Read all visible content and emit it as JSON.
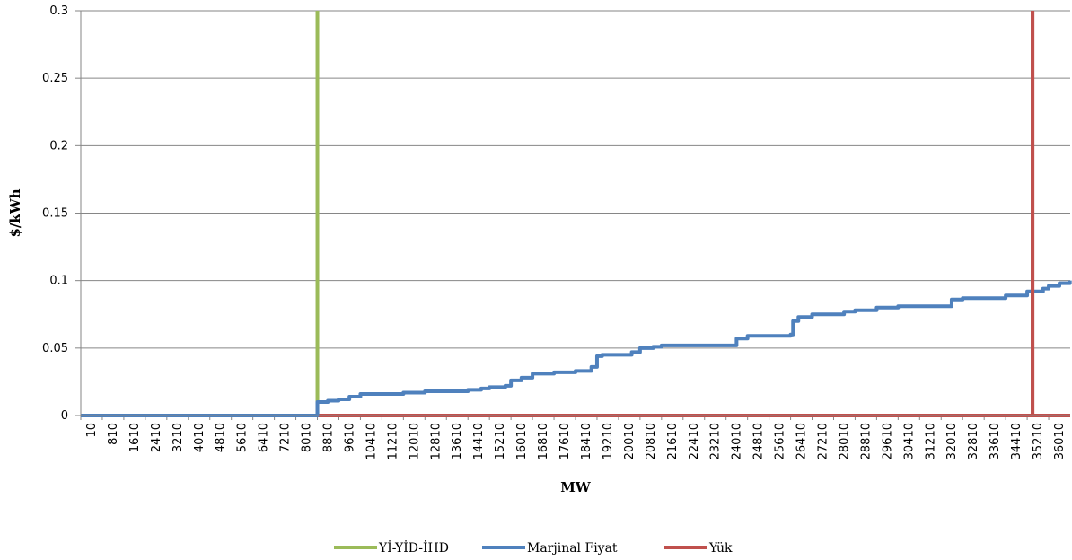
{
  "chart_data": {
    "type": "line",
    "title": "",
    "xlabel": "MW",
    "ylabel": "$/kWh",
    "ylim": [
      0,
      0.3
    ],
    "y_ticks": [
      "0",
      "0.05",
      "0.1",
      "0.15",
      "0.2",
      "0.25",
      "0.3"
    ],
    "x_ticks": [
      "10",
      "810",
      "1610",
      "2410",
      "3210",
      "4010",
      "4810",
      "5610",
      "6410",
      "7210",
      "8010",
      "8810",
      "9610",
      "10410",
      "11210",
      "12010",
      "12810",
      "13610",
      "14410",
      "15210",
      "16010",
      "16810",
      "17610",
      "18410",
      "19210",
      "20010",
      "20810",
      "21610",
      "22410",
      "23210",
      "24010",
      "24810",
      "25610",
      "26410",
      "27210",
      "28010",
      "28810",
      "29610",
      "30410",
      "31210",
      "32010",
      "32810",
      "33610",
      "34410",
      "35210",
      "36010"
    ],
    "grid": "horizontal",
    "legend_position": "bottom",
    "series": [
      {
        "name": "Yİ-YİD-İHD",
        "color": "#9BBB59",
        "type": "vertical",
        "x": 8810,
        "y": [
          0,
          0.3
        ]
      },
      {
        "name": "Marjinal Fiyat",
        "color": "#4F81BD",
        "type": "step",
        "x": [
          10,
          8810,
          8810,
          9200,
          9600,
          10000,
          10410,
          11210,
          12010,
          12810,
          13610,
          14410,
          14900,
          15210,
          15800,
          16010,
          16400,
          16810,
          17610,
          18410,
          19000,
          19210,
          19400,
          20010,
          20500,
          20810,
          21300,
          21610,
          22410,
          23210,
          24010,
          24400,
          24810,
          25610,
          26410,
          26500,
          26700,
          27210,
          28010,
          28400,
          28810,
          29610,
          30410,
          31210,
          32010,
          32400,
          32810,
          33610,
          34410,
          35210,
          35800,
          36010,
          36410,
          36800
        ],
        "y": [
          0,
          0,
          0.01,
          0.011,
          0.012,
          0.014,
          0.016,
          0.016,
          0.017,
          0.018,
          0.018,
          0.019,
          0.02,
          0.021,
          0.022,
          0.026,
          0.028,
          0.031,
          0.032,
          0.033,
          0.036,
          0.044,
          0.045,
          0.045,
          0.047,
          0.05,
          0.051,
          0.052,
          0.052,
          0.052,
          0.052,
          0.057,
          0.059,
          0.059,
          0.06,
          0.07,
          0.073,
          0.075,
          0.075,
          0.077,
          0.078,
          0.08,
          0.081,
          0.081,
          0.081,
          0.086,
          0.087,
          0.087,
          0.089,
          0.092,
          0.094,
          0.096,
          0.098,
          0.1
        ]
      },
      {
        "name": "Yük",
        "color": "#C0504D",
        "type": "vertical",
        "x": 35410,
        "y": [
          0,
          0.3
        ]
      }
    ]
  }
}
